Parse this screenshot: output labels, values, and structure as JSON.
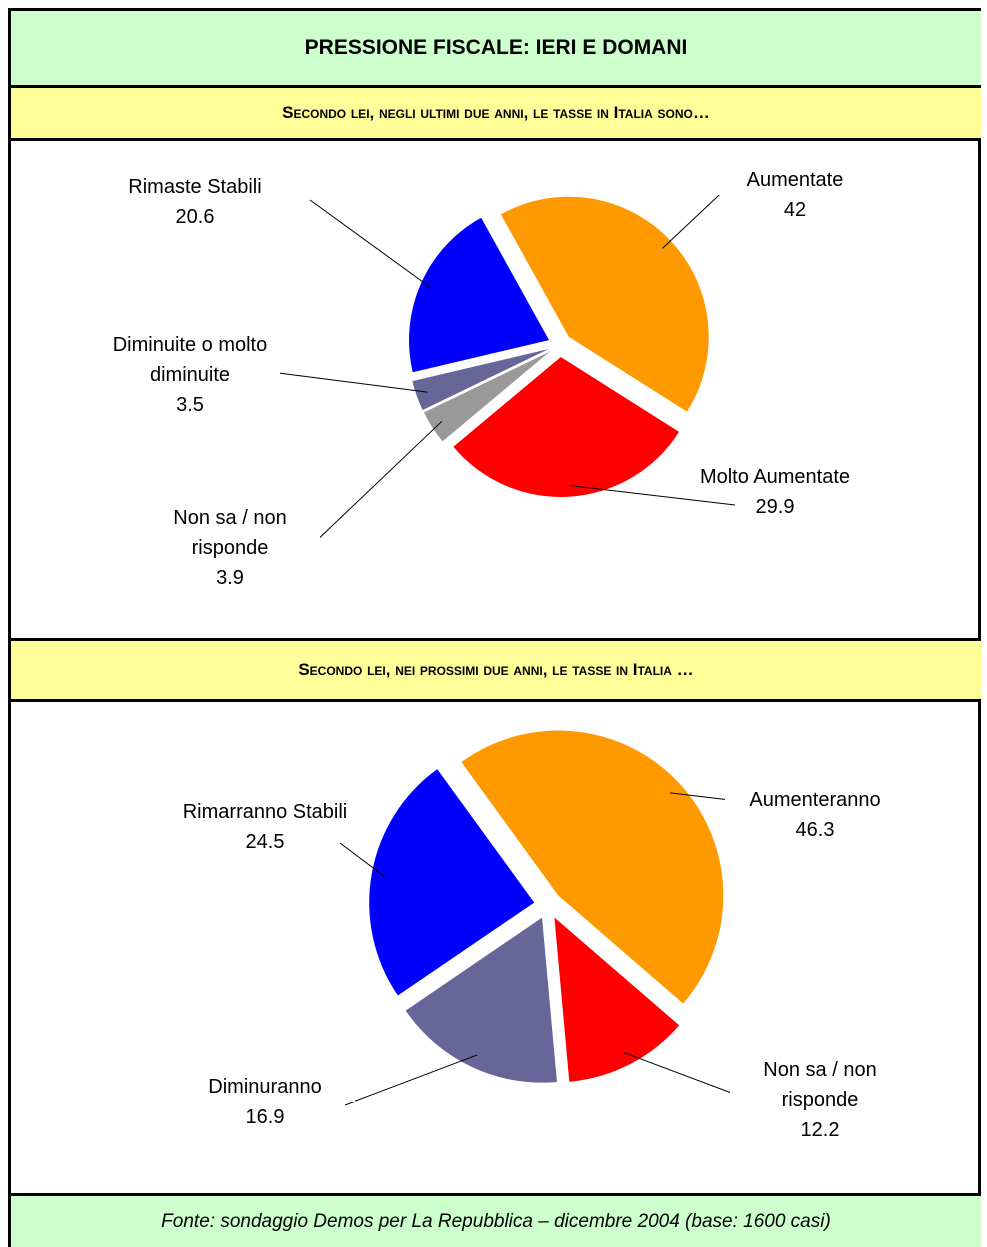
{
  "title": "PRESSIONE FISCALE: IERI E DOMANI",
  "source": "Fonte: sondaggio Demos per La Repubblica – dicembre 2004 (base: 1600 casi)",
  "chart_data": [
    {
      "type": "pie",
      "title": "Secondo lei, negli ultimi due anni, le tasse in Italia sono…",
      "categories": [
        "Aumentate",
        "Molto Aumentate",
        "Non sa / non risponde",
        "Diminuite o molto diminuite",
        "Rimaste Stabili"
      ],
      "values": [
        42,
        29.9,
        3.9,
        3.5,
        20.6
      ],
      "colors": [
        "#ff9900",
        "#ff0000",
        "#999999",
        "#666699",
        "#0000ff"
      ]
    },
    {
      "type": "pie",
      "title": "Secondo lei, nei prossimi due anni, le tasse in Italia …",
      "categories": [
        "Aumenteranno",
        "Non sa / non risponde",
        "Diminuranno",
        "Rimarranno Stabili"
      ],
      "values": [
        46.3,
        12.2,
        16.9,
        24.5
      ],
      "colors": [
        "#ff9900",
        "#ff0000",
        "#666699",
        "#0000ff"
      ]
    }
  ]
}
